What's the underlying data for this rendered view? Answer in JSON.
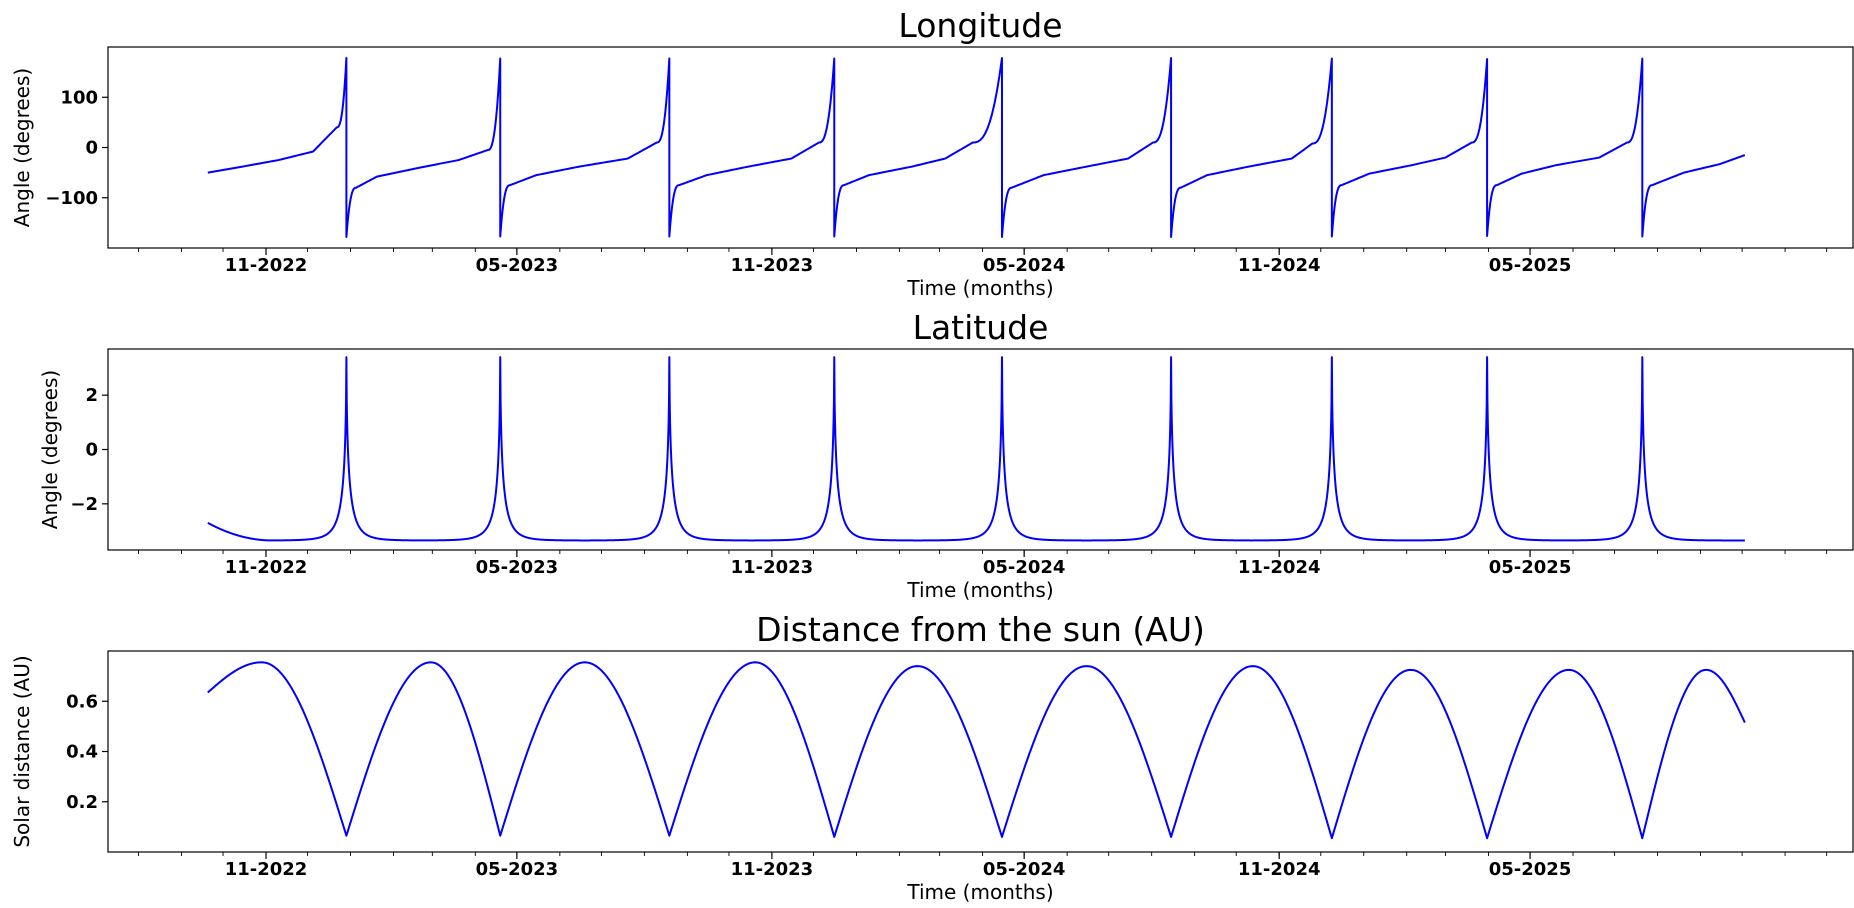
{
  "chart_data": [
    {
      "type": "line",
      "title": "Longitude",
      "xlabel": "Time (months)",
      "ylabel": "Angle (degrees)",
      "x_range": [
        "2022-09-20",
        "2025-10-03"
      ],
      "xlim": [
        "2022-07-10",
        "2025-12-20"
      ],
      "ylim": [
        -200,
        200
      ],
      "yticks": [
        -100,
        0,
        100
      ],
      "ytick_labels": [
        "−100",
        "0",
        "100"
      ],
      "xticks": [
        "2022-11-01",
        "2023-05-01",
        "2023-11-01",
        "2024-05-01",
        "2024-11-01",
        "2025-05-01"
      ],
      "xtick_labels": [
        "11-2022",
        "05-2023",
        "11-2023",
        "05-2024",
        "11-2024",
        "05-2025"
      ],
      "grid": false,
      "series": [
        {
          "color": "#0000ff",
          "wraps_at": [
            -180,
            180
          ],
          "x": [
            "2022-09-20",
            "2022-10-15",
            "2022-11-10",
            "2022-12-05",
            "2022-12-22",
            "2022-12-29",
            "2022-12-29",
            "2023-01-05",
            "2023-01-20",
            "2023-02-20",
            "2023-03-20",
            "2023-04-10",
            "2023-04-19",
            "2023-04-19",
            "2023-04-26",
            "2023-05-15",
            "2023-06-15",
            "2023-07-20",
            "2023-08-10",
            "2023-08-19",
            "2023-08-19",
            "2023-08-26",
            "2023-09-15",
            "2023-10-15",
            "2023-11-15",
            "2023-12-05",
            "2023-12-16",
            "2023-12-16",
            "2023-12-23",
            "2024-01-10",
            "2024-02-10",
            "2024-03-05",
            "2024-03-25",
            "2024-04-15",
            "2024-04-15",
            "2024-04-22",
            "2024-05-15",
            "2024-06-15",
            "2024-07-15",
            "2024-08-02",
            "2024-08-15",
            "2024-08-15",
            "2024-08-22",
            "2024-09-10",
            "2024-10-10",
            "2024-11-10",
            "2024-11-25",
            "2024-12-09",
            "2024-12-09",
            "2024-12-16",
            "2025-01-05",
            "2025-02-05",
            "2025-03-01",
            "2025-03-20",
            "2025-03-31",
            "2025-03-31",
            "2025-04-07",
            "2025-04-25",
            "2025-05-20",
            "2025-06-20",
            "2025-07-10",
            "2025-07-21",
            "2025-07-21",
            "2025-07-28",
            "2025-08-20",
            "2025-09-15",
            "2025-10-03"
          ],
          "y": [
            -50,
            -38,
            -25,
            -8,
            40,
            178,
            -178,
            -80,
            -58,
            -40,
            -25,
            -5,
            177,
            -177,
            -75,
            -55,
            -38,
            -22,
            10,
            177,
            -177,
            -75,
            -55,
            -38,
            -22,
            10,
            177,
            -177,
            -75,
            -55,
            -38,
            -22,
            10,
            178,
            -178,
            -80,
            -55,
            -38,
            -22,
            10,
            178,
            -178,
            -80,
            -55,
            -38,
            -22,
            8,
            177,
            -177,
            -75,
            -52,
            -35,
            -20,
            10,
            176,
            -176,
            -75,
            -52,
            -35,
            -20,
            10,
            177,
            -177,
            -75,
            -50,
            -33,
            -15
          ]
        }
      ]
    },
    {
      "type": "line",
      "title": "Latitude",
      "xlabel": "Time (months)",
      "ylabel": "Angle (degrees)",
      "x_range": [
        "2022-09-20",
        "2025-10-03"
      ],
      "xlim": [
        "2022-07-10",
        "2025-12-20"
      ],
      "ylim": [
        -3.7,
        3.7
      ],
      "yticks": [
        -2,
        0,
        2
      ],
      "ytick_labels": [
        "−2",
        "0",
        "2"
      ],
      "xticks": [
        "2022-11-01",
        "2023-05-01",
        "2023-11-01",
        "2024-05-01",
        "2024-11-01",
        "2025-05-01"
      ],
      "xtick_labels": [
        "11-2022",
        "05-2023",
        "11-2023",
        "05-2024",
        "11-2024",
        "05-2025"
      ],
      "grid": false,
      "series": [
        {
          "color": "#0000ff",
          "min_value": -3.35,
          "peak_value": 3.4,
          "peak_dates": [
            "2022-12-29",
            "2023-04-19",
            "2023-08-19",
            "2023-12-16",
            "2024-04-15",
            "2024-08-15",
            "2024-12-09",
            "2025-03-31",
            "2025-07-21"
          ],
          "x": [
            "2022-09-20",
            "2022-12-29",
            "2023-04-19",
            "2023-08-19",
            "2023-12-16",
            "2024-04-15",
            "2024-08-15",
            "2024-12-09",
            "2025-03-31",
            "2025-07-21",
            "2025-10-03"
          ],
          "y": [
            -2.7,
            3.4,
            3.4,
            3.4,
            3.4,
            3.4,
            3.4,
            3.4,
            3.4,
            3.4,
            -3.35
          ]
        }
      ]
    },
    {
      "type": "line",
      "title": "Distance from the sun (AU)",
      "xlabel": "Time (months)",
      "ylabel": "Solar distance (AU)",
      "x_range": [
        "2022-09-20",
        "2025-10-03"
      ],
      "xlim": [
        "2022-07-10",
        "2025-12-20"
      ],
      "ylim": [
        0.0,
        0.8
      ],
      "yticks": [
        0.2,
        0.4,
        0.6
      ],
      "ytick_labels": [
        "0.2",
        "0.4",
        "0.6"
      ],
      "xticks": [
        "2022-11-01",
        "2023-05-01",
        "2023-11-01",
        "2024-05-01",
        "2024-11-01",
        "2025-05-01"
      ],
      "xtick_labels": [
        "11-2022",
        "05-2023",
        "11-2023",
        "05-2024",
        "11-2024",
        "05-2025"
      ],
      "grid": false,
      "series": [
        {
          "color": "#0000ff",
          "x": [
            "2022-09-20",
            "2022-10-29",
            "2022-12-29",
            "2023-02-28",
            "2023-04-19",
            "2023-06-19",
            "2023-08-19",
            "2023-10-20",
            "2023-12-16",
            "2024-02-14",
            "2024-04-15",
            "2024-06-15",
            "2024-08-15",
            "2024-10-13",
            "2024-12-09",
            "2025-02-04",
            "2025-03-31",
            "2025-05-29",
            "2025-07-21",
            "2025-09-05",
            "2025-10-03"
          ],
          "y": [
            0.635,
            0.755,
            0.065,
            0.755,
            0.065,
            0.755,
            0.065,
            0.755,
            0.06,
            0.74,
            0.06,
            0.74,
            0.06,
            0.74,
            0.055,
            0.725,
            0.055,
            0.725,
            0.055,
            0.725,
            0.515
          ]
        }
      ]
    }
  ]
}
